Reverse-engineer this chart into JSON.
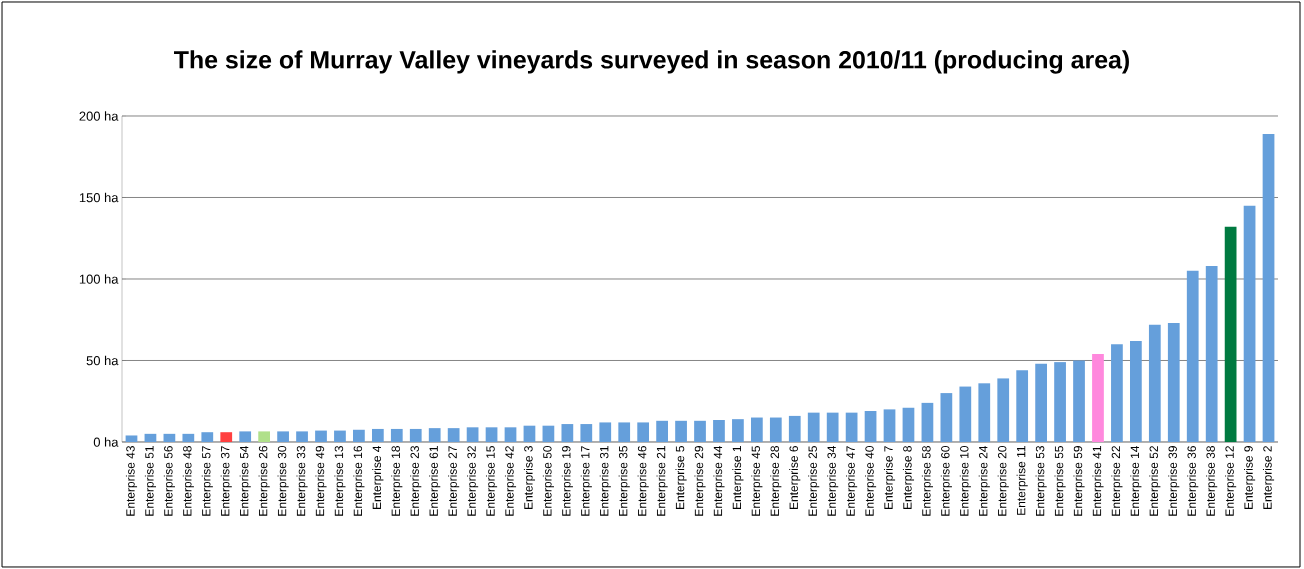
{
  "chart_data": {
    "type": "bar",
    "title": "The size of Murray Valley vineyards surveyed in season 2010/11 (producing area)",
    "categories": [
      "Enterprise 43",
      "Enterprise 51",
      "Enterprise 56",
      "Enterprise 48",
      "Enterprise 57",
      "Enterprise 37",
      "Enterprise 54",
      "Enterprise 26",
      "Enterprise 30",
      "Enterprise 33",
      "Enterprise 49",
      "Enterprise 13",
      "Enterprise 16",
      "Enterprise 4",
      "Enterprise 18",
      "Enterprise 23",
      "Enterprise 61",
      "Enterprise 27",
      "Enterprise 32",
      "Enterprise 15",
      "Enterprise 42",
      "Enterprise 3",
      "Enterprise 50",
      "Enterprise 19",
      "Enterprise 17",
      "Enterprise 31",
      "Enterprise 35",
      "Enterprise 46",
      "Enterprise 21",
      "Enterprise 5",
      "Enterprise 29",
      "Enterprise 44",
      "Enterprise 1",
      "Enterprise 45",
      "Enterprise 28",
      "Enterprise 6",
      "Enterprise 25",
      "Enterprise 34",
      "Enterprise 47",
      "Enterprise 40",
      "Enterprise 7",
      "Enterprise 8",
      "Enterprise 58",
      "Enterprise 60",
      "Enterprise 10",
      "Enterprise 24",
      "Enterprise 20",
      "Enterprise 11",
      "Enterprise 53",
      "Enterprise 55",
      "Enterprise 59",
      "Enterprise 41",
      "Enterprise 22",
      "Enterprise 14",
      "Enterprise 52",
      "Enterprise 39",
      "Enterprise 36",
      "Enterprise 38",
      "Enterprise 12",
      "Enterprise 9",
      "Enterprise 2"
    ],
    "values": [
      4,
      5,
      5,
      5,
      6,
      6,
      6.5,
      6.5,
      6.5,
      6.5,
      7,
      7,
      7.5,
      8,
      8,
      8,
      8.5,
      8.5,
      9,
      9,
      9,
      10,
      10,
      11,
      11,
      12,
      12,
      12,
      13,
      13,
      13,
      13.5,
      14,
      15,
      15,
      16,
      18,
      18,
      18,
      19,
      20,
      21,
      24,
      30,
      34,
      36,
      39,
      44,
      48,
      49,
      50,
      54,
      60,
      62,
      72,
      73,
      105,
      108,
      132,
      145,
      189
    ],
    "colors": [
      "#659fdb",
      "#659fdb",
      "#659fdb",
      "#659fdb",
      "#659fdb",
      "#ff4040",
      "#659fdb",
      "#b0e08a",
      "#659fdb",
      "#659fdb",
      "#659fdb",
      "#659fdb",
      "#659fdb",
      "#659fdb",
      "#659fdb",
      "#659fdb",
      "#659fdb",
      "#659fdb",
      "#659fdb",
      "#659fdb",
      "#659fdb",
      "#659fdb",
      "#659fdb",
      "#659fdb",
      "#659fdb",
      "#659fdb",
      "#659fdb",
      "#659fdb",
      "#659fdb",
      "#659fdb",
      "#659fdb",
      "#659fdb",
      "#659fdb",
      "#659fdb",
      "#659fdb",
      "#659fdb",
      "#659fdb",
      "#659fdb",
      "#659fdb",
      "#659fdb",
      "#659fdb",
      "#659fdb",
      "#659fdb",
      "#659fdb",
      "#659fdb",
      "#659fdb",
      "#659fdb",
      "#659fdb",
      "#659fdb",
      "#659fdb",
      "#659fdb",
      "#ff88dd",
      "#659fdb",
      "#659fdb",
      "#659fdb",
      "#659fdb",
      "#659fdb",
      "#659fdb",
      "#007a40",
      "#659fdb",
      "#659fdb"
    ],
    "ylim": [
      0,
      200
    ],
    "yticks": [
      {
        "value": 0,
        "label": "0 ha"
      },
      {
        "value": 50,
        "label": "50 ha"
      },
      {
        "value": 100,
        "label": "100 ha"
      },
      {
        "value": 150,
        "label": "150 ha"
      },
      {
        "value": 200,
        "label": "200 ha"
      }
    ],
    "grid": "y"
  }
}
